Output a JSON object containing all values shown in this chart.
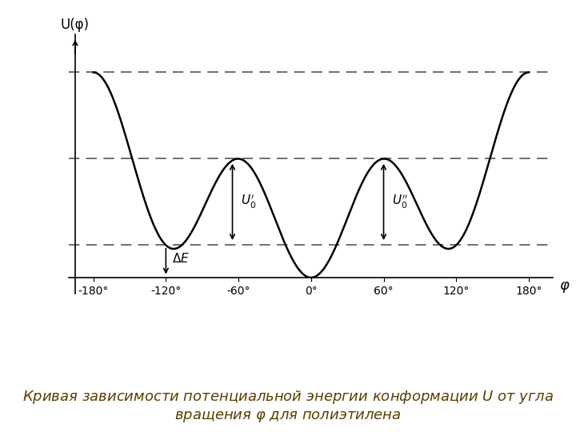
{
  "title": "",
  "xlabel": "φ",
  "ylabel": "U(φ)",
  "xlim": [
    -200,
    200
  ],
  "ylim": [
    -0.3,
    4.5
  ],
  "xticks": [
    -180,
    -120,
    -60,
    0,
    60,
    120,
    180
  ],
  "xtick_labels": [
    "-180°",
    "-120°",
    "-60°",
    "0°",
    "60°",
    "120°",
    "180°"
  ],
  "curve_color": "#000000",
  "dashed_color": "#555555",
  "arrow_color": "#000000",
  "background_color": "#ffffff",
  "y_max": 3.8,
  "y_mid": 2.2,
  "y_low": 0.6,
  "y_zero": 0.0,
  "caption": "Кривая зависимости потенциальной энергии конформации $\\mathit{U}$ от угла\nвращения $\\mathit{\\varphi}$ для полиэтилена",
  "caption_fontsize": 13
}
